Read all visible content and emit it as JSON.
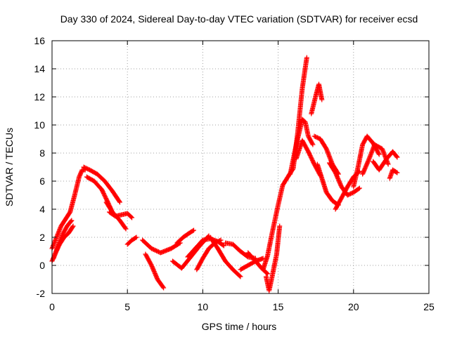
{
  "chart_data": {
    "type": "scatter",
    "title": "Day 330 of 2024, Sidereal Day-to-day VTEC variation (SDTVAR) for receiver ecsd",
    "xlabel": "GPS time / hours",
    "ylabel": "SDTVAR / TECUs",
    "xlim": [
      0,
      25
    ],
    "ylim": [
      -2,
      16
    ],
    "x_ticks": [
      0,
      5,
      10,
      15,
      20,
      25
    ],
    "y_ticks": [
      -2,
      0,
      2,
      4,
      6,
      8,
      10,
      12,
      14,
      16
    ],
    "grid": true,
    "marker": "+",
    "marker_color": "#ff0000",
    "series": [
      {
        "name": "SDTVAR",
        "tracks": [
          {
            "x": [
              0.0,
              0.3,
              0.6,
              0.9,
              1.2,
              1.5,
              1.8,
              2.0,
              2.2
            ],
            "y": [
              1.2,
              2.0,
              2.8,
              3.3,
              3.8,
              5.0,
              6.3,
              6.8,
              6.8
            ]
          },
          {
            "x": [
              0.0,
              0.2,
              0.5,
              0.8,
              1.1,
              1.4
            ],
            "y": [
              0.3,
              0.8,
              1.5,
              2.0,
              2.3,
              2.8
            ]
          },
          {
            "x": [
              0.1,
              0.4,
              0.7,
              1.0,
              1.3
            ],
            "y": [
              0.5,
              1.4,
              2.2,
              2.8,
              3.2
            ]
          },
          {
            "x": [
              2.1,
              2.5,
              3.0,
              3.5,
              4.0,
              4.5
            ],
            "y": [
              7.0,
              6.8,
              6.5,
              6.0,
              5.3,
              4.5
            ]
          },
          {
            "x": [
              2.3,
              2.8,
              3.3,
              3.7,
              4.0
            ],
            "y": [
              6.3,
              6.0,
              5.4,
              4.5,
              3.8
            ]
          },
          {
            "x": [
              3.6,
              4.0,
              4.5,
              4.9
            ],
            "y": [
              4.5,
              3.8,
              3.2,
              2.6
            ]
          },
          {
            "x": [
              3.8,
              4.2,
              4.6,
              5.0,
              5.3
            ],
            "y": [
              3.8,
              3.5,
              3.6,
              3.7,
              3.4
            ]
          },
          {
            "x": [
              5.0,
              5.3,
              5.6
            ],
            "y": [
              1.5,
              1.8,
              2.0
            ]
          },
          {
            "x": [
              6.0,
              6.6,
              7.2,
              7.9,
              8.5
            ],
            "y": [
              1.8,
              1.2,
              0.9,
              1.2,
              1.6
            ]
          },
          {
            "x": [
              6.2,
              6.6,
              7.0,
              7.4
            ],
            "y": [
              0.8,
              0.0,
              -1.0,
              -1.6
            ]
          },
          {
            "x": [
              8.3,
              8.7,
              9.1,
              9.4
            ],
            "y": [
              1.6,
              2.0,
              2.3,
              2.5
            ]
          },
          {
            "x": [
              8.0,
              8.6,
              9.2,
              9.8,
              10.4
            ],
            "y": [
              0.3,
              -0.2,
              0.6,
              1.4,
              2.1
            ]
          },
          {
            "x": [
              9.0,
              9.5,
              10.0,
              10.5,
              11.0,
              11.4
            ],
            "y": [
              0.6,
              1.2,
              1.8,
              1.9,
              1.7,
              1.4
            ]
          },
          {
            "x": [
              9.6,
              10.0,
              10.4,
              10.8,
              11.2
            ],
            "y": [
              -0.3,
              0.5,
              1.2,
              1.6,
              1.8
            ]
          },
          {
            "x": [
              10.5,
              11.0,
              11.5,
              12.0,
              12.5
            ],
            "y": [
              2.0,
              1.2,
              0.3,
              -0.3,
              -0.8
            ]
          },
          {
            "x": [
              11.5,
              12.0,
              12.5,
              13.0,
              13.5
            ],
            "y": [
              1.6,
              1.5,
              1.0,
              0.6,
              0.5
            ]
          },
          {
            "x": [
              12.5,
              13.0,
              13.5,
              14.0
            ],
            "y": [
              -0.3,
              0.0,
              0.3,
              0.5
            ]
          },
          {
            "x": [
              13.0,
              13.5,
              13.9,
              14.3
            ],
            "y": [
              0.9,
              0.3,
              -0.2,
              -0.6
            ]
          },
          {
            "x": [
              14.0,
              14.3,
              14.6,
              15.0,
              15.3,
              15.7,
              16.0,
              16.3,
              16.6,
              16.9
            ],
            "y": [
              -0.3,
              0.7,
              2.3,
              4.3,
              5.7,
              6.4,
              6.9,
              9.5,
              12.6,
              14.8
            ]
          },
          {
            "x": [
              14.2,
              14.4,
              14.6,
              14.9,
              15.1
            ],
            "y": [
              -0.8,
              -1.8,
              -0.8,
              0.8,
              2.8
            ]
          },
          {
            "x": [
              15.8,
              16.2,
              16.6,
              16.8,
              17.0,
              17.3
            ],
            "y": [
              6.5,
              8.6,
              10.4,
              10.2,
              9.2,
              8.6
            ]
          },
          {
            "x": [
              16.2,
              16.6,
              17.0,
              17.4,
              17.8
            ],
            "y": [
              7.6,
              8.9,
              8.1,
              7.2,
              6.4
            ]
          },
          {
            "x": [
              17.2,
              17.5,
              17.7,
              17.9
            ],
            "y": [
              10.8,
              12.1,
              12.9,
              11.8
            ]
          },
          {
            "x": [
              17.4,
              17.8,
              18.2,
              18.6,
              19.0
            ],
            "y": [
              9.2,
              9.0,
              8.3,
              7.2,
              6.5
            ]
          },
          {
            "x": [
              17.6,
              17.9,
              18.2,
              18.6,
              19.0
            ],
            "y": [
              7.2,
              6.2,
              5.2,
              4.6,
              4.3
            ]
          },
          {
            "x": [
              18.4,
              18.8,
              19.2,
              19.6,
              20.0,
              20.4
            ],
            "y": [
              7.3,
              6.6,
              5.6,
              5.0,
              5.2,
              5.5
            ]
          },
          {
            "x": [
              18.8,
              19.2,
              19.6,
              20.0,
              20.4
            ],
            "y": [
              4.0,
              4.8,
              5.6,
              6.3,
              6.7
            ]
          },
          {
            "x": [
              20.0,
              20.3,
              20.6,
              20.9,
              21.3,
              21.7
            ],
            "y": [
              5.6,
              7.0,
              8.6,
              9.2,
              8.7,
              7.9
            ]
          },
          {
            "x": [
              20.6,
              21.0,
              21.4,
              21.9,
              22.3
            ],
            "y": [
              6.5,
              7.5,
              8.6,
              8.3,
              7.2
            ]
          },
          {
            "x": [
              21.3,
              21.7,
              22.2,
              22.6,
              22.9
            ],
            "y": [
              7.4,
              6.8,
              7.6,
              8.1,
              7.7
            ]
          },
          {
            "x": [
              22.4,
              22.6,
              22.9
            ],
            "y": [
              6.2,
              6.8,
              6.6
            ]
          }
        ]
      }
    ]
  }
}
